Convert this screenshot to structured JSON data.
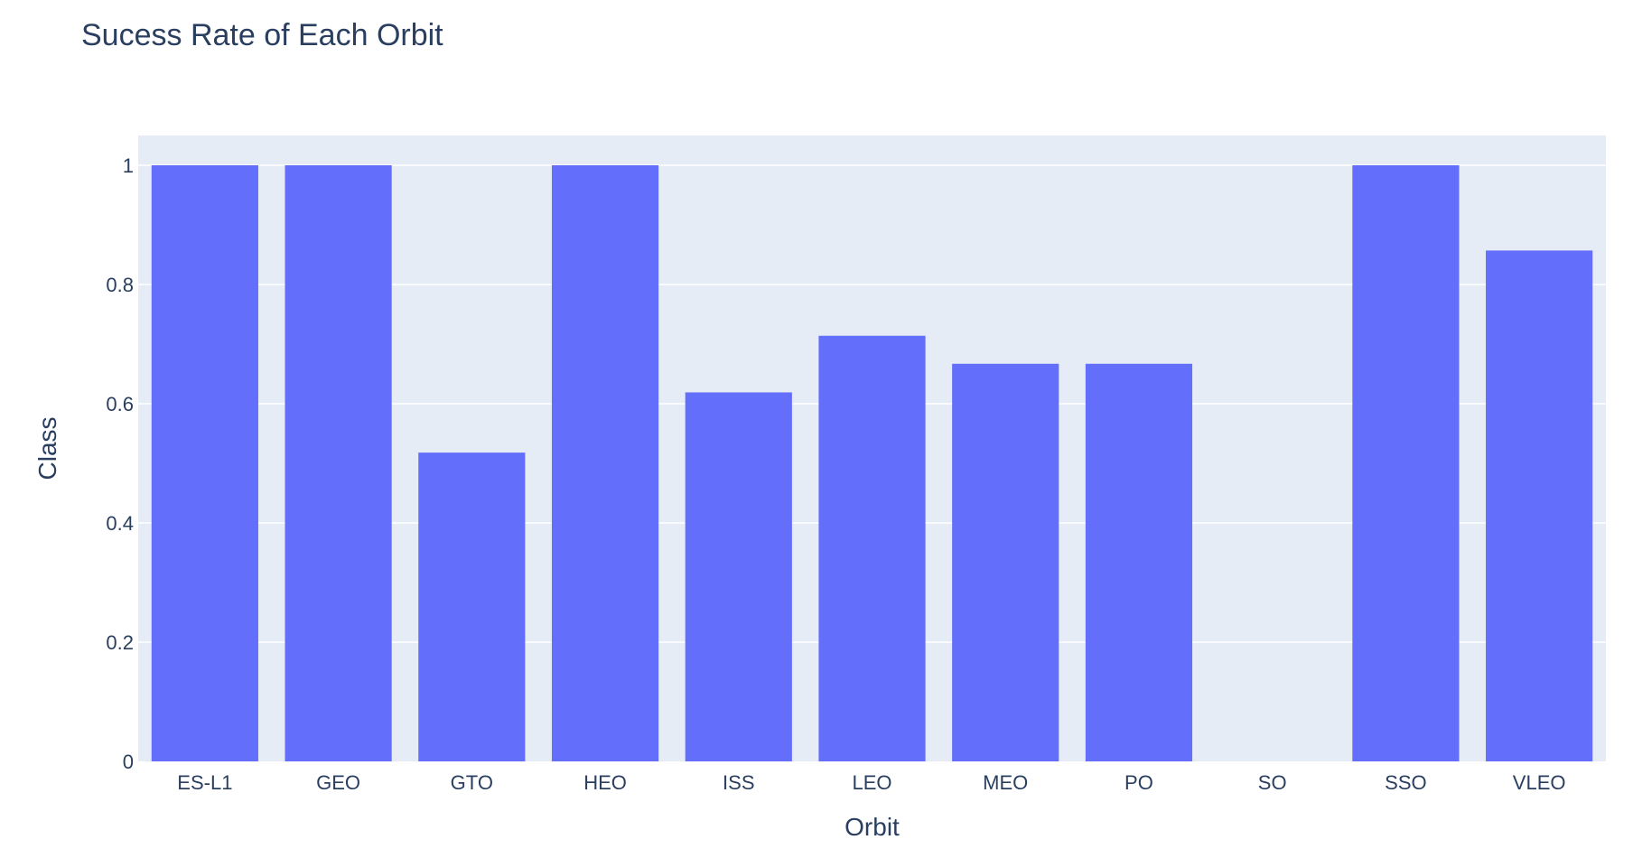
{
  "chart_data": {
    "type": "bar",
    "title": "Sucess Rate of Each Orbit",
    "xlabel": "Orbit",
    "ylabel": "Class",
    "categories": [
      "ES-L1",
      "GEO",
      "GTO",
      "HEO",
      "ISS",
      "LEO",
      "MEO",
      "PO",
      "SO",
      "SSO",
      "VLEO"
    ],
    "values": [
      1,
      1,
      0.518,
      1,
      0.619,
      0.714,
      0.667,
      0.667,
      0,
      1,
      0.857
    ],
    "ylim": [
      0,
      1.05
    ],
    "yticks": [
      0,
      0.2,
      0.4,
      0.6,
      0.8,
      1
    ],
    "ytick_labels": [
      "0",
      "0.2",
      "0.4",
      "0.6",
      "0.8",
      "1"
    ],
    "grid": true,
    "colors": {
      "bar": "#636efa",
      "plot_bg": "#e5ecf6",
      "grid": "#ffffff",
      "text": "#2a3f5f"
    }
  }
}
